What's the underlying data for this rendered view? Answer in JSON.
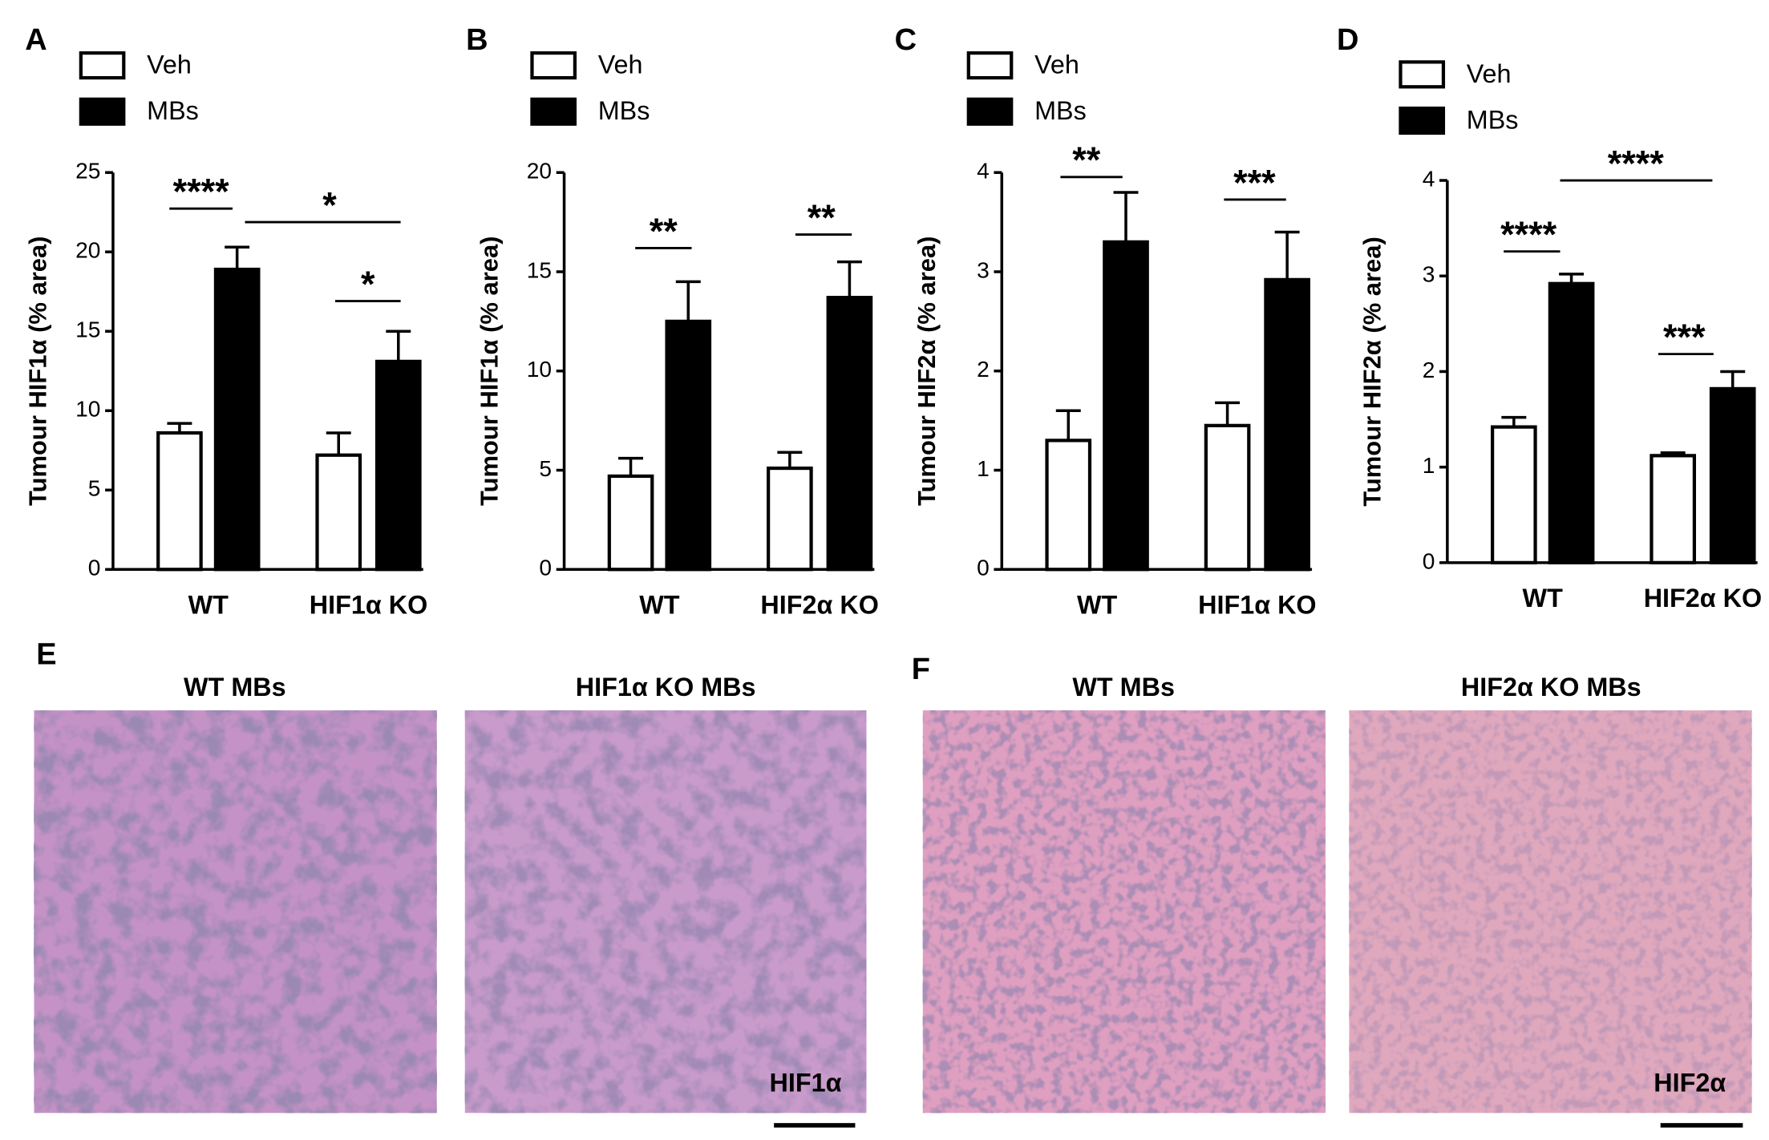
{
  "chart_data": [
    {
      "type": "bar",
      "panel": "A",
      "ylabel": "Tumour HIF1α (% area)",
      "categories": [
        "WT",
        "HIF1α KO"
      ],
      "series": [
        {
          "name": "Veh",
          "color": "#ffffff",
          "values": [
            8.6,
            7.2
          ],
          "errors": [
            0.6,
            1.4
          ]
        },
        {
          "name": "MBs",
          "color": "#000000",
          "values": [
            18.9,
            13.1
          ],
          "errors": [
            1.4,
            1.9
          ]
        }
      ],
      "ylim": [
        0,
        25
      ],
      "yticks": [
        0,
        5,
        10,
        15,
        20,
        25
      ],
      "annotations": [
        "****",
        "*",
        "*"
      ]
    },
    {
      "type": "bar",
      "panel": "B",
      "ylabel": "Tumour HIF1α (% area)",
      "categories": [
        "WT",
        "HIF2α KO"
      ],
      "series": [
        {
          "name": "Veh",
          "color": "#ffffff",
          "values": [
            4.7,
            5.1
          ],
          "errors": [
            0.9,
            0.8
          ]
        },
        {
          "name": "MBs",
          "color": "#000000",
          "values": [
            12.5,
            13.7
          ],
          "errors": [
            2.0,
            1.8
          ]
        }
      ],
      "ylim": [
        0,
        20
      ],
      "yticks": [
        0,
        5,
        10,
        15,
        20
      ],
      "annotations": [
        "**",
        "**"
      ]
    },
    {
      "type": "bar",
      "panel": "C",
      "ylabel": "Tumour HIF2α (% area)",
      "categories": [
        "WT",
        "HIF1α KO"
      ],
      "series": [
        {
          "name": "Veh",
          "color": "#ffffff",
          "values": [
            1.3,
            1.45
          ],
          "errors": [
            0.3,
            0.23
          ]
        },
        {
          "name": "MBs",
          "color": "#000000",
          "values": [
            3.3,
            2.92
          ],
          "errors": [
            0.5,
            0.48
          ]
        }
      ],
      "ylim": [
        0,
        4
      ],
      "yticks": [
        0,
        1,
        2,
        3,
        4
      ],
      "annotations": [
        "**",
        "***"
      ]
    },
    {
      "type": "bar",
      "panel": "D",
      "ylabel": "Tumour HIF2α (% area)",
      "categories": [
        "WT",
        "HIF2α KO"
      ],
      "series": [
        {
          "name": "Veh",
          "color": "#ffffff",
          "values": [
            1.42,
            1.12
          ],
          "errors": [
            0.1,
            0.03
          ]
        },
        {
          "name": "MBs",
          "color": "#000000",
          "values": [
            2.92,
            1.82
          ],
          "errors": [
            0.1,
            0.18
          ]
        }
      ],
      "ylim": [
        0,
        4
      ],
      "yticks": [
        0,
        1,
        2,
        3,
        4
      ],
      "annotations": [
        "****",
        "****",
        "***"
      ]
    }
  ],
  "images": [
    {
      "panel": "E",
      "titles": [
        "WT MBs",
        "HIF1α KO MBs"
      ],
      "stain": "HIF1α"
    },
    {
      "panel": "F",
      "titles": [
        "WT MBs",
        "HIF2α KO MBs"
      ],
      "stain": "HIF2α"
    }
  ]
}
